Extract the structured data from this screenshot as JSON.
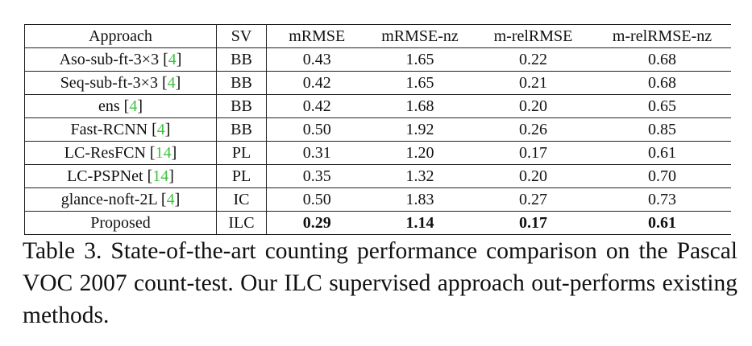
{
  "table": {
    "header": [
      "Approach",
      "SV",
      "mRMSE",
      "mRMSE-nz",
      "m-relRMSE",
      "m-relRMSE-nz"
    ],
    "rows": [
      {
        "approach": "Aso-sub-ft-3×3",
        "ref": "[4]",
        "sv": "BB",
        "values": [
          "0.43",
          "1.65",
          "0.22",
          "0.68"
        ]
      },
      {
        "approach": "Seq-sub-ft-3×3",
        "ref": "[4]",
        "sv": "BB",
        "values": [
          "0.42",
          "1.65",
          "0.21",
          "0.68"
        ]
      },
      {
        "approach": "ens",
        "ref": "[4]",
        "sv": "BB",
        "values": [
          "0.42",
          "1.68",
          "0.20",
          "0.65"
        ]
      },
      {
        "approach": "Fast-RCNN",
        "ref": "[4]",
        "sv": "BB",
        "values": [
          "0.50",
          "1.92",
          "0.26",
          "0.85"
        ]
      },
      {
        "approach": "LC-ResFCN",
        "ref": "[14]",
        "sv": "PL",
        "values": [
          "0.31",
          "1.20",
          "0.17",
          "0.61"
        ]
      },
      {
        "approach": "LC-PSPNet",
        "ref": "[14]",
        "sv": "PL",
        "values": [
          "0.35",
          "1.32",
          "0.20",
          "0.70"
        ]
      },
      {
        "approach": "glance-noft-2L",
        "ref": "[4]",
        "sv": "IC",
        "values": [
          "0.50",
          "1.83",
          "0.27",
          "0.73"
        ]
      },
      {
        "approach": "Proposed",
        "sv": "ILC",
        "values": [
          "0.29",
          "1.14",
          "0.17",
          "0.61"
        ]
      }
    ],
    "caption": "Table 3. State-of-the-art counting performance comparison on the Pascal VOC 2007 count-test. Our ILC supervised approach out-performs existing methods."
  }
}
